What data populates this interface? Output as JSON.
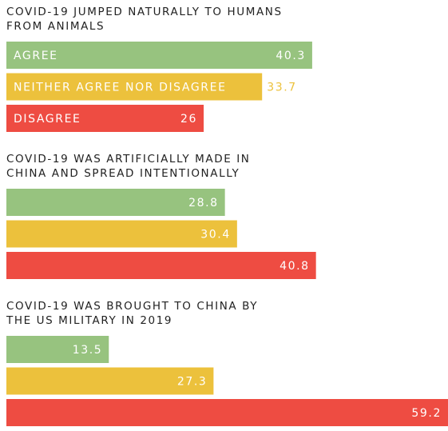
{
  "chart_data": [
    {
      "type": "bar",
      "title": [
        "COVID-19 JUMPED NATURALLY TO HUMANS",
        "FROM ANIMALS"
      ],
      "categories": [
        "AGREE",
        "NEITHER AGREE NOR DISAGREE",
        "DISAGREE"
      ],
      "values": [
        40.3,
        33.7,
        26
      ],
      "colors": [
        "#97c37f",
        "#ecc13c",
        "#ee4c42"
      ],
      "xlim": [
        0,
        58.2
      ]
    },
    {
      "type": "bar",
      "title": [
        "COVID-19 WAS ARTIFICIALLY MADE IN",
        "CHINA AND SPREAD INTENTIONALLY"
      ],
      "categories": [
        null,
        null,
        null
      ],
      "values": [
        28.8,
        30.4,
        40.8
      ],
      "colors": [
        "#97c37f",
        "#ecc13c",
        "#ee4c42"
      ],
      "xlim": [
        0,
        58.2
      ]
    },
    {
      "type": "bar",
      "title": [
        "COVID-19 WAS BROUGHT TO CHINA BY",
        "THE US MILITARY IN 2019"
      ],
      "categories": [
        null,
        null,
        null
      ],
      "values": [
        13.5,
        27.3,
        59.2
      ],
      "colors": [
        "#97c37f",
        "#ecc13c",
        "#ee4c42"
      ],
      "xlim": [
        0,
        58.2
      ]
    }
  ]
}
